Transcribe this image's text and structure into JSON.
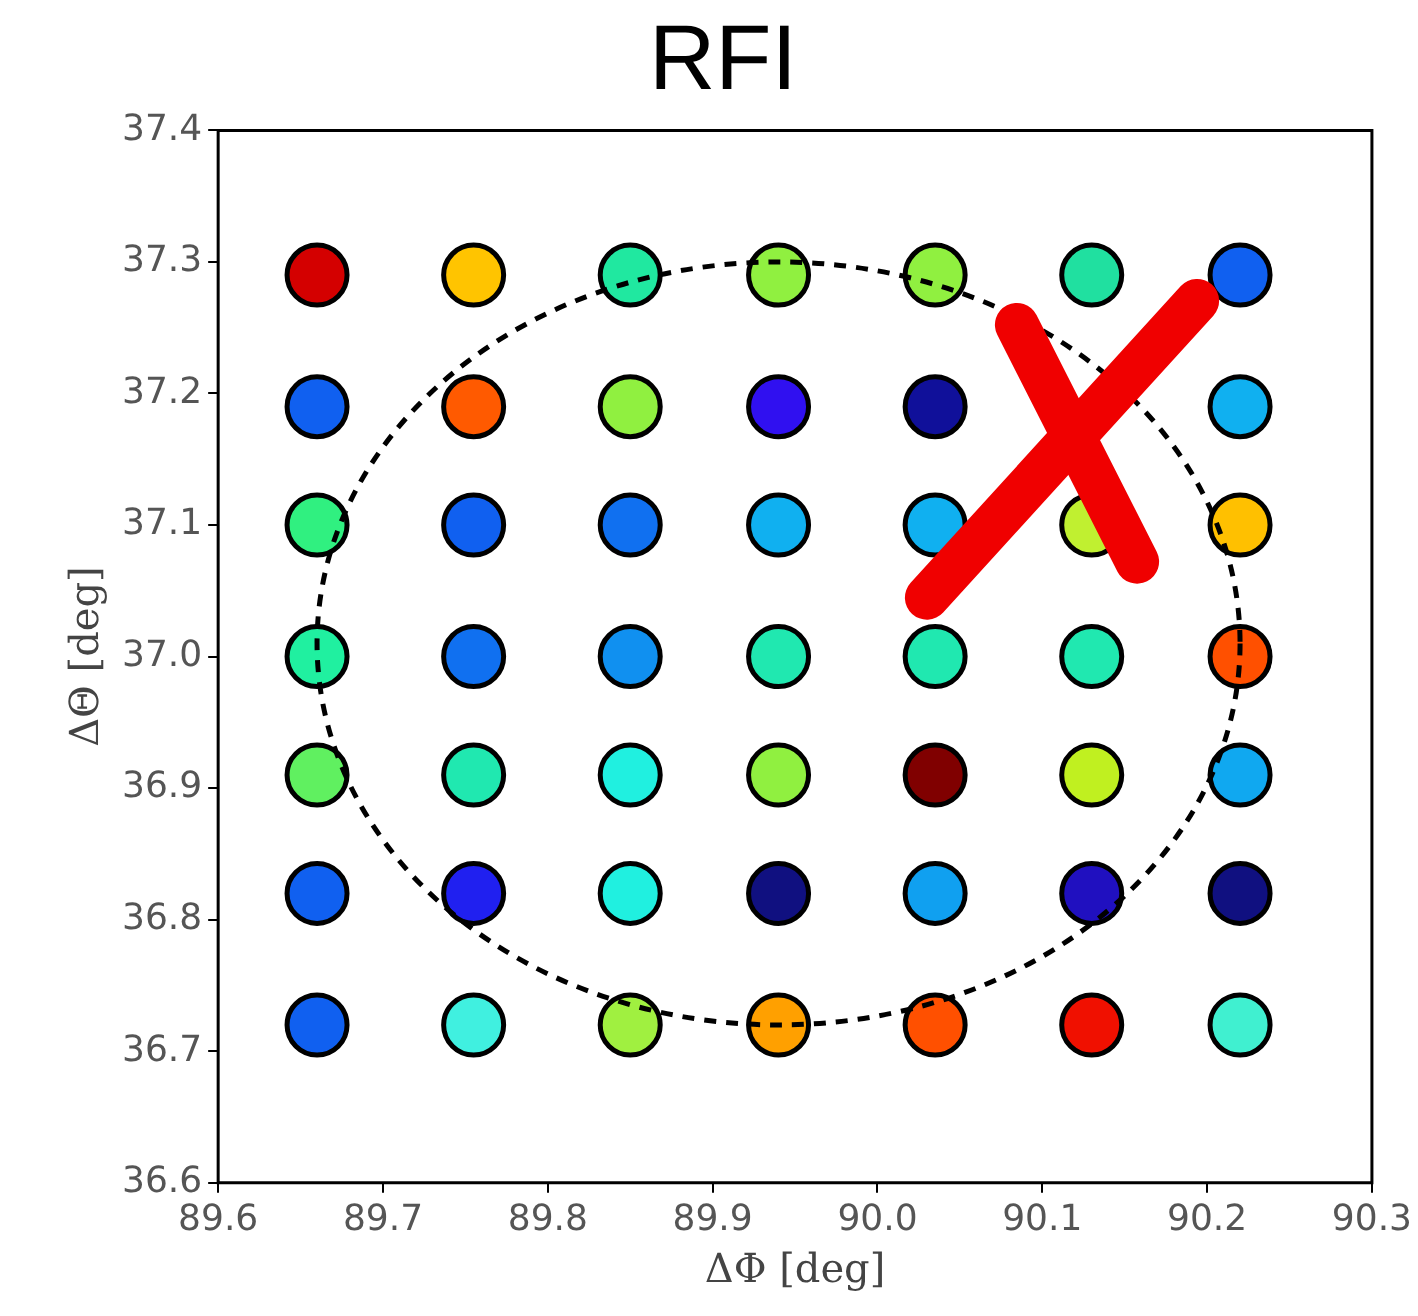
{
  "chart_data": {
    "type": "scatter",
    "title": "RFI",
    "xlabel": "ΔΦ [deg]",
    "ylabel": "ΔΘ [deg]",
    "marker": "circle",
    "x": [
      89.66,
      89.755,
      89.85,
      89.94,
      90.035,
      90.13,
      90.22,
      89.66,
      89.755,
      89.85,
      89.94,
      90.035,
      90.13,
      90.22,
      89.66,
      89.755,
      89.85,
      89.94,
      90.035,
      90.13,
      90.22,
      89.66,
      89.755,
      89.85,
      89.94,
      90.035,
      90.13,
      90.22,
      89.66,
      89.755,
      89.85,
      89.94,
      90.035,
      90.13,
      90.22,
      89.66,
      89.755,
      89.85,
      89.94,
      90.035,
      90.13,
      90.22,
      89.66,
      89.755,
      89.85,
      89.94,
      90.035,
      90.13,
      90.22
    ],
    "values": [
      37.29,
      37.29,
      37.29,
      37.29,
      37.29,
      37.29,
      37.29,
      37.19,
      37.19,
      37.19,
      37.19,
      37.19,
      null,
      37.19,
      37.1,
      37.1,
      37.1,
      37.1,
      37.1,
      37.1,
      37.1,
      37.0,
      37.0,
      37.0,
      37.0,
      37.0,
      37.0,
      37.0,
      36.91,
      36.91,
      36.91,
      36.91,
      36.91,
      36.91,
      36.91,
      36.82,
      36.82,
      36.82,
      36.82,
      36.82,
      36.82,
      36.82,
      36.72,
      36.72,
      36.72,
      36.72,
      36.72,
      36.72,
      36.72
    ],
    "colors": [
      "#d40000",
      "#ffc400",
      "#20e8a0",
      "#90f040",
      "#90f040",
      "#20e0a0",
      "#1060f0",
      "#1060f0",
      "#ff5a00",
      "#90f040",
      "#3010f0",
      "#10109a",
      "#a0f040",
      "#10b0f0",
      "#30f080",
      "#1060f0",
      "#1070f0",
      "#10b0f0",
      "#10b0f0",
      "#c0f030",
      "#ffc000",
      "#20f0a0",
      "#1070f0",
      "#1090f0",
      "#20e8b0",
      "#20e8b0",
      "#20e8b0",
      "#ff5000",
      "#60f060",
      "#20e8b0",
      "#20f0e0",
      "#90f040",
      "#800000",
      "#c0f020",
      "#10a8f0",
      "#1060f0",
      "#2020f0",
      "#20f0e0",
      "#101080",
      "#10a0f0",
      "#2010c0",
      "#101080",
      "#1060f0",
      "#40f0e0",
      "#a0f040",
      "#ffa000",
      "#ff5000",
      "#f01000",
      "#40f0d0"
    ],
    "xlim": [
      89.6,
      90.3
    ],
    "xticks": [
      89.6,
      89.7,
      89.8,
      89.9,
      {
        "value": 90.0,
        "label": "90.0"
      },
      90.1,
      90.2,
      90.3
    ],
    "ylim": [
      36.6,
      37.4
    ],
    "yticks": [
      36.6,
      36.7,
      36.8,
      36.9,
      {
        "value": 37.0,
        "label": "37.0"
      },
      37.1,
      37.2,
      37.3,
      37.4
    ]
  }
}
